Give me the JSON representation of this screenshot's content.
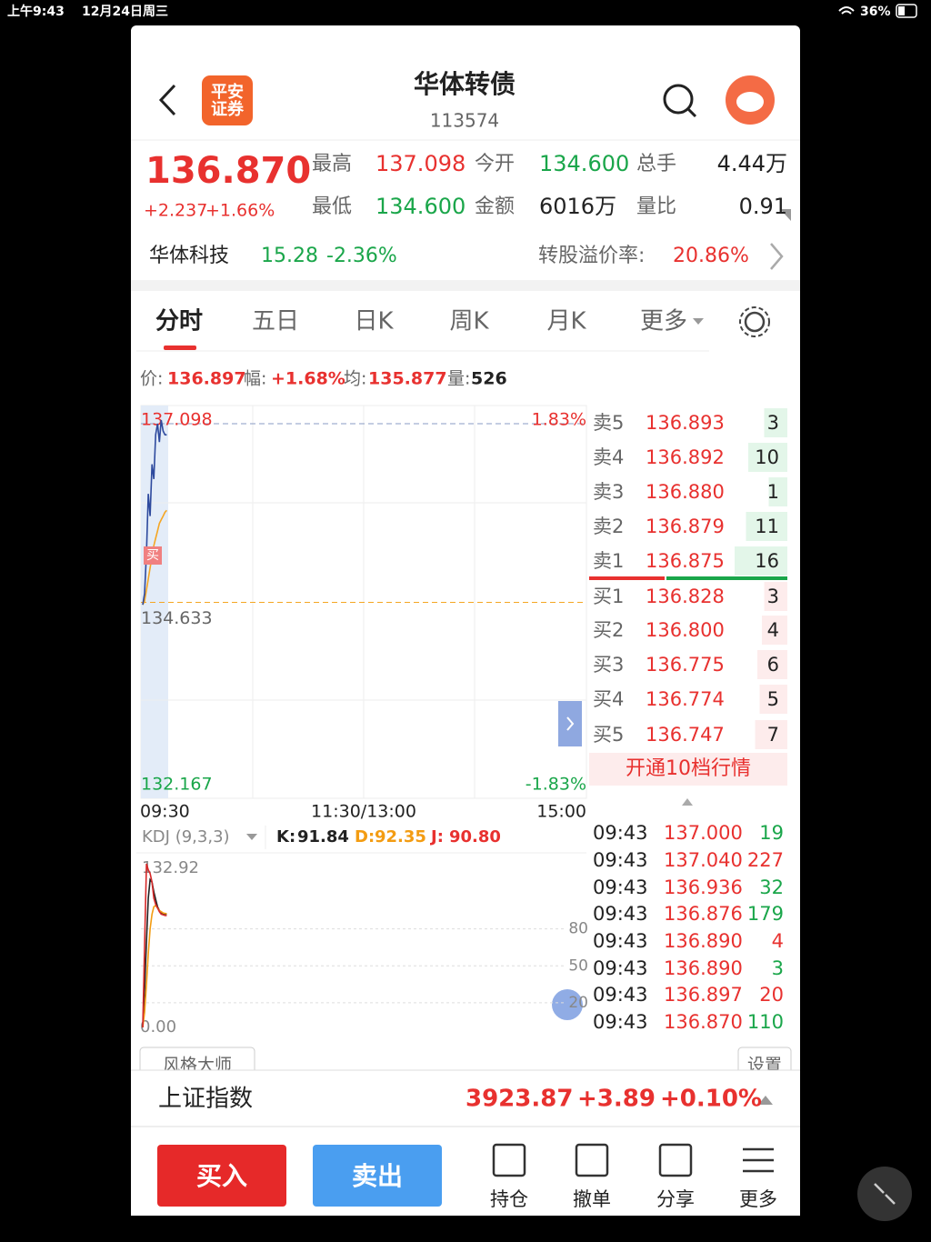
{
  "status_bar": {
    "time": "上午9:43",
    "date": "12月24日周三",
    "battery": "36%"
  },
  "header": {
    "logo": [
      "平安",
      "证券"
    ],
    "title": "华体转债",
    "code": "113574"
  },
  "quote": {
    "price": "136.870",
    "change": "+2.237",
    "change_pct": "+1.66%",
    "stats": [
      {
        "label": "最高",
        "value": "137.098",
        "color": "#e8312f"
      },
      {
        "label": "今开",
        "value": "134.600",
        "color": "#1aa64a"
      },
      {
        "label": "总手",
        "value": "4.44万",
        "color": "#222222"
      },
      {
        "label": "最低",
        "value": "134.600",
        "color": "#1aa64a"
      },
      {
        "label": "金额",
        "value": "6016万",
        "color": "#222222"
      },
      {
        "label": "量比",
        "value": "0.91",
        "color": "#222222"
      }
    ]
  },
  "underlying": {
    "name": "华体科技",
    "price": "15.28",
    "change_pct": "-2.36%",
    "premium_label": "转股溢价率:",
    "premium": "20.86%"
  },
  "tabs": [
    "分时",
    "五日",
    "日K",
    "周K",
    "月K",
    "更多"
  ],
  "cursor_info": [
    {
      "label": "价:",
      "value": "136.897",
      "color": "#e8312f"
    },
    {
      "label": "幅:",
      "value": "+1.68%",
      "color": "#e8312f"
    },
    {
      "label": "均:",
      "value": "135.877",
      "color": "#e8312f"
    },
    {
      "label": "量:",
      "value": "526",
      "color": "#222222"
    }
  ],
  "intraday": {
    "high": 137.098,
    "low": 132.167,
    "prev_close": 134.633,
    "high_pct": "1.83%",
    "low_pct": "-1.83%",
    "buy_marker": "买",
    "times": [
      "09:30",
      "11:30/13:00",
      "15:00"
    ],
    "price": [
      134.6,
      134.75,
      135.3,
      136.1,
      135.8,
      136.5,
      136.3,
      136.9,
      137.05,
      136.8,
      137.098,
      136.95,
      136.9,
      136.897
    ],
    "average": [
      134.6,
      134.65,
      134.8,
      134.95,
      135.1,
      135.25,
      135.4,
      135.5,
      135.6,
      135.7,
      135.75,
      135.8,
      135.85,
      135.877
    ]
  },
  "kdj": {
    "name": "KDJ (9,3,3)",
    "k_label": "K:",
    "k_value": 91.84,
    "d_label": "D:",
    "d_value": 92.35,
    "j_label": "J:",
    "j_value": "90.80",
    "ylim": [
      {
        "value": 0,
        "label": "0.00"
      },
      132.92
    ],
    "yticks": [
      80,
      50,
      20
    ],
    "series": [
      {
        "name": "K",
        "color": "#222222",
        "values": [
          0,
          30,
          70,
          105,
          120,
          118,
          110,
          104,
          98,
          95,
          93,
          92.5,
          92,
          91.84
        ]
      },
      {
        "name": "D",
        "color": "#f39c12",
        "values": [
          0,
          12,
          35,
          60,
          80,
          92,
          98,
          99,
          97,
          95,
          94,
          93,
          92.6,
          92.35
        ]
      },
      {
        "name": "J",
        "color": "#d62828",
        "values": [
          0,
          66,
          132.92,
          128,
          125,
          118,
          105,
          100,
          97,
          94,
          92,
          91.5,
          91,
          90.8
        ]
      }
    ]
  },
  "order_book": {
    "asks": [
      {
        "label": "卖5",
        "price": "136.893",
        "volume": 3
      },
      {
        "label": "卖4",
        "price": "136.892",
        "volume": 10
      },
      {
        "label": "卖3",
        "price": "136.880",
        "volume": 1
      },
      {
        "label": "卖2",
        "price": "136.879",
        "volume": 11
      },
      {
        "label": "卖1",
        "price": "136.875",
        "volume": 16
      }
    ],
    "bids": [
      {
        "label": "买1",
        "price": "136.828",
        "volume": 3
      },
      {
        "label": "买2",
        "price": "136.800",
        "volume": 4
      },
      {
        "label": "买3",
        "price": "136.775",
        "volume": 6
      },
      {
        "label": "买4",
        "price": "136.774",
        "volume": 5
      },
      {
        "label": "买5",
        "price": "136.747",
        "volume": 7
      }
    ],
    "upgrade": "开通10档行情"
  },
  "trades": [
    {
      "time": "09:43",
      "price": "137.000",
      "volume": 19,
      "color": "#1aa64a"
    },
    {
      "time": "09:43",
      "price": "137.040",
      "volume": 227,
      "color": "#e8312f"
    },
    {
      "time": "09:43",
      "price": "136.936",
      "volume": 32,
      "color": "#1aa64a"
    },
    {
      "time": "09:43",
      "price": "136.876",
      "volume": 179,
      "color": "#1aa64a"
    },
    {
      "time": "09:43",
      "price": "136.890",
      "volume": 4,
      "color": "#e8312f"
    },
    {
      "time": "09:43",
      "price": "136.890",
      "volume": 3,
      "color": "#1aa64a"
    },
    {
      "time": "09:43",
      "price": "136.897",
      "volume": 20,
      "color": "#e8312f"
    },
    {
      "time": "09:43",
      "price": "136.870",
      "volume": 110,
      "color": "#1aa64a"
    }
  ],
  "buttons": {
    "style_master": "风格大师",
    "settings": "设置"
  },
  "index_bar": {
    "name": "上证指数",
    "value": "3923.87",
    "change": "+3.89",
    "change_pct": "+0.10%"
  },
  "actions": {
    "buy": "买入",
    "sell": "卖出",
    "tools": [
      "持仓",
      "撤单",
      "分享",
      "更多"
    ]
  }
}
